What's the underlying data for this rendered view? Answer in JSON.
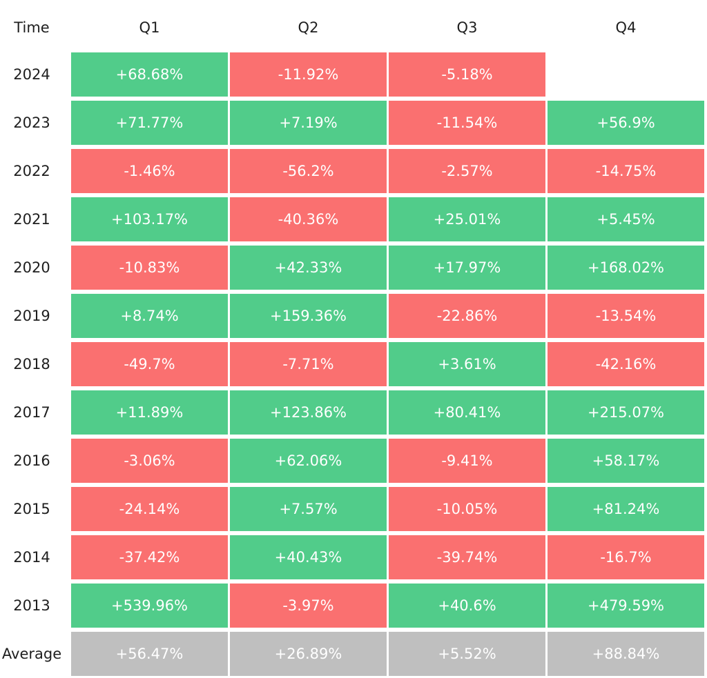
{
  "chart_data": {
    "type": "heatmap",
    "corner_label": "Time",
    "columns": [
      "Q1",
      "Q2",
      "Q3",
      "Q4"
    ],
    "rows": [
      {
        "label": "2024",
        "values": [
          "+68.68%",
          "-11.92%",
          "-5.18%",
          ""
        ]
      },
      {
        "label": "2023",
        "values": [
          "+71.77%",
          "+7.19%",
          "-11.54%",
          "+56.9%"
        ]
      },
      {
        "label": "2022",
        "values": [
          "-1.46%",
          "-56.2%",
          "-2.57%",
          "-14.75%"
        ]
      },
      {
        "label": "2021",
        "values": [
          "+103.17%",
          "-40.36%",
          "+25.01%",
          "+5.45%"
        ]
      },
      {
        "label": "2020",
        "values": [
          "-10.83%",
          "+42.33%",
          "+17.97%",
          "+168.02%"
        ]
      },
      {
        "label": "2019",
        "values": [
          "+8.74%",
          "+159.36%",
          "-22.86%",
          "-13.54%"
        ]
      },
      {
        "label": "2018",
        "values": [
          "-49.7%",
          "-7.71%",
          "+3.61%",
          "-42.16%"
        ]
      },
      {
        "label": "2017",
        "values": [
          "+11.89%",
          "+123.86%",
          "+80.41%",
          "+215.07%"
        ]
      },
      {
        "label": "2016",
        "values": [
          "-3.06%",
          "+62.06%",
          "-9.41%",
          "+58.17%"
        ]
      },
      {
        "label": "2015",
        "values": [
          "-24.14%",
          "+7.57%",
          "-10.05%",
          "+81.24%"
        ]
      },
      {
        "label": "2014",
        "values": [
          "-37.42%",
          "+40.43%",
          "-39.74%",
          "-16.7%"
        ]
      },
      {
        "label": "2013",
        "values": [
          "+539.96%",
          "-3.97%",
          "+40.6%",
          "+479.59%"
        ]
      }
    ],
    "average": {
      "label": "Average",
      "values": [
        "+56.47%",
        "+26.89%",
        "+5.52%",
        "+88.84%"
      ]
    },
    "colors": {
      "positive": "#51cc8a",
      "negative": "#fa7070",
      "average": "#bfbfbf",
      "cell_text": "#ffffff",
      "label_text": "#1e1e1e"
    }
  }
}
